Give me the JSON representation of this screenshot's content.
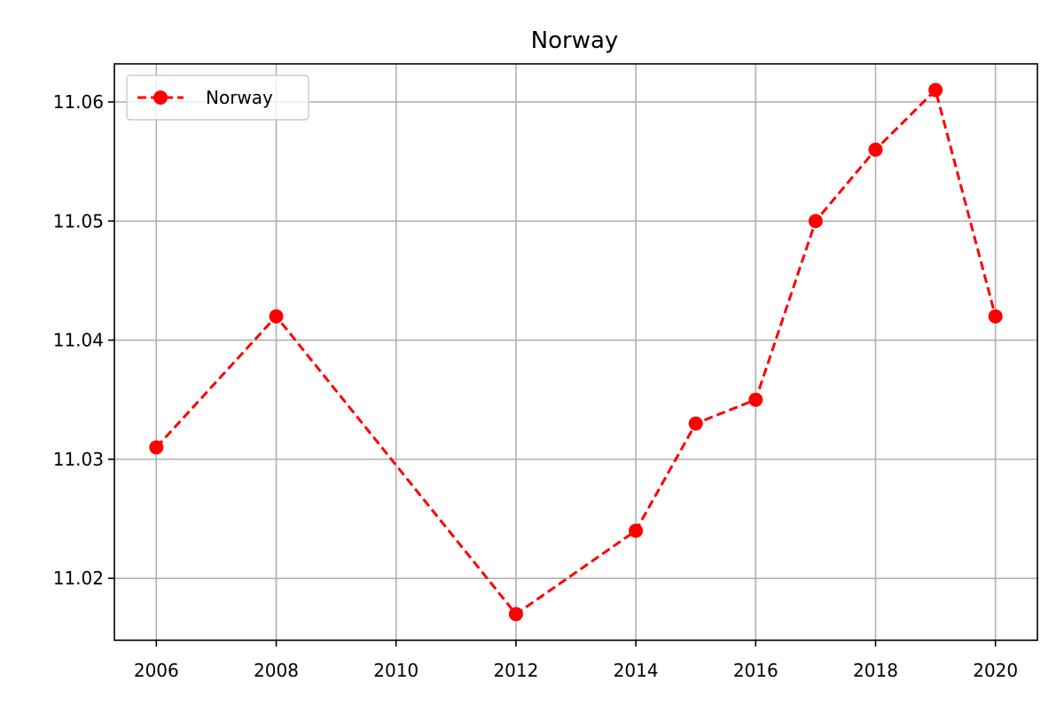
{
  "chart_data": {
    "type": "line",
    "title": "Norway",
    "xlabel": "",
    "ylabel": "",
    "x": [
      2006,
      2008,
      2012,
      2014,
      2015,
      2016,
      2017,
      2018,
      2019,
      2020
    ],
    "series": [
      {
        "name": "Norway",
        "values": [
          11.031,
          11.042,
          11.017,
          11.024,
          11.033,
          11.035,
          11.05,
          11.056,
          11.061,
          11.042
        ],
        "color": "#ff0000",
        "line_style": "dashed",
        "marker": "circle"
      }
    ],
    "xlim": [
      2005.3,
      2020.7
    ],
    "ylim": [
      11.0148,
      11.0632
    ],
    "x_ticks": [
      "2006",
      "2008",
      "2010",
      "2012",
      "2014",
      "2016",
      "2018",
      "2020"
    ],
    "y_ticks": [
      "11.02",
      "11.03",
      "11.04",
      "11.05",
      "11.06"
    ],
    "grid": true,
    "legend_position": "top-left"
  }
}
